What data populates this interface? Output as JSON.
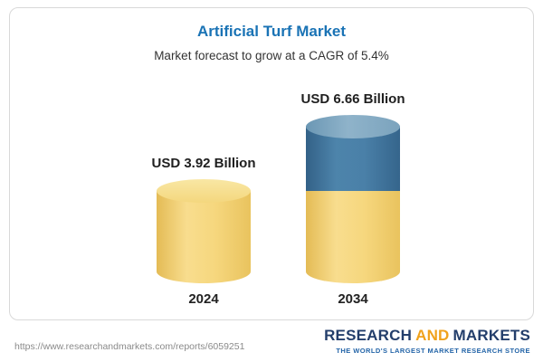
{
  "header": {
    "title": "Artificial Turf Market",
    "subtitle": "Market forecast to grow at a CAGR of 5.4%"
  },
  "chart_data": {
    "type": "bar",
    "subtype": "3d-cylinder",
    "title": "Artificial Turf Market",
    "subtitle": "Market forecast to grow at a CAGR of 5.4%",
    "cagr_percent": 5.4,
    "units": "USD Billion",
    "categories": [
      "2024",
      "2034"
    ],
    "values": [
      3.92,
      6.66
    ],
    "value_labels": [
      "USD 3.92 Billion",
      "USD 6.66 Billion"
    ],
    "stacked_segments": {
      "2034": [
        {
          "name": "base (2024 level)",
          "value": 3.92,
          "color": "#F2CF6E"
        },
        {
          "name": "forecast growth",
          "value": 2.74,
          "color": "#3E79A5"
        }
      ]
    },
    "colors": {
      "base_yellow": "#F2CF6E",
      "growth_blue": "#3E79A5",
      "title_blue": "#1A73B5"
    },
    "grid": false,
    "legend": false,
    "ylim": [
      0,
      7
    ]
  },
  "footer": {
    "url": "https://www.researchandmarkets.com/reports/6059251",
    "logo": {
      "research": "RESEARCH",
      "and": "AND",
      "markets": "MARKETS",
      "tagline": "THE WORLD'S LARGEST MARKET RESEARCH STORE"
    }
  }
}
